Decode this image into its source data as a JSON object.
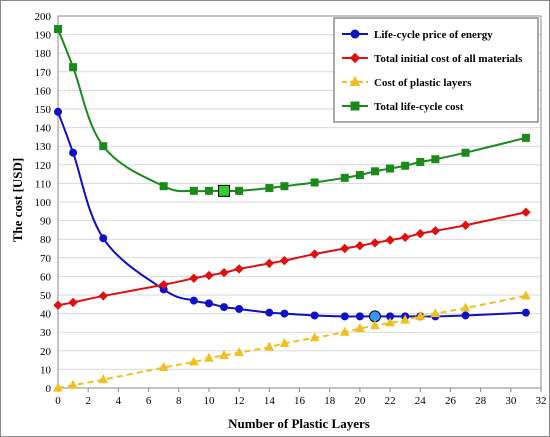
{
  "chart_data": {
    "type": "line",
    "title": "",
    "xlabel": "Number of Plastic Layers",
    "ylabel": "The cost [USD]",
    "xlim": [
      0,
      32
    ],
    "ylim": [
      0,
      200
    ],
    "x_ticks": [
      0,
      2,
      4,
      6,
      8,
      10,
      12,
      14,
      16,
      18,
      20,
      22,
      24,
      26,
      28,
      30,
      32
    ],
    "y_ticks": [
      0,
      10,
      20,
      30,
      40,
      50,
      60,
      70,
      80,
      90,
      100,
      110,
      120,
      130,
      140,
      150,
      160,
      170,
      180,
      190,
      200
    ],
    "grid": true,
    "legend_position": "top-right",
    "series": [
      {
        "name": "Life-cycle price of energy",
        "color": "#1010c8",
        "marker": "circle",
        "line": "solid",
        "x": [
          0,
          1,
          3,
          7,
          9,
          10,
          11,
          12,
          14,
          15,
          17,
          19,
          20,
          21,
          22,
          23,
          24,
          25,
          27,
          31
        ],
        "y": [
          148.5,
          126.5,
          80.5,
          53,
          47,
          45.5,
          43.5,
          42.5,
          40.5,
          40,
          39,
          38.5,
          38.5,
          38.5,
          38.5,
          38.5,
          38.5,
          38.5,
          39,
          40.5
        ],
        "highlight": {
          "x": 21,
          "y": 38.5,
          "color": "#3399ff"
        }
      },
      {
        "name": "Total initial cost of all materials",
        "color": "#e01010",
        "marker": "diamond",
        "line": "solid",
        "x": [
          0,
          1,
          3,
          7,
          9,
          10,
          11,
          12,
          14,
          15,
          17,
          19,
          20,
          21,
          22,
          23,
          24,
          25,
          27,
          31
        ],
        "y": [
          44.5,
          46,
          49.5,
          55.5,
          59,
          60.5,
          62,
          64,
          67,
          68.5,
          72,
          75,
          76.5,
          78,
          79.5,
          81,
          83,
          84.5,
          87.5,
          94.5
        ]
      },
      {
        "name": "Cost of plastic layers",
        "color": "#f0c020",
        "marker": "triangle",
        "line": "dashed",
        "x": [
          0,
          1,
          3,
          7,
          9,
          10,
          11,
          12,
          14,
          15,
          17,
          19,
          20,
          21,
          22,
          23,
          24,
          25,
          27,
          31
        ],
        "y": [
          0,
          1.5,
          4.5,
          11,
          14,
          16,
          17.5,
          19,
          22,
          24,
          27,
          30,
          32,
          33.5,
          35,
          36.5,
          38.5,
          40,
          43,
          49.5
        ]
      },
      {
        "name": "Total life-cycle cost",
        "color": "#1a8a1a",
        "marker": "square",
        "line": "solid",
        "x": [
          0,
          1,
          3,
          7,
          9,
          10,
          11,
          12,
          14,
          15,
          17,
          19,
          20,
          21,
          22,
          23,
          24,
          25,
          27,
          31
        ],
        "y": [
          193,
          172.5,
          130,
          108.5,
          106,
          106,
          106,
          106,
          107.5,
          108.5,
          110.5,
          113,
          114.5,
          116.5,
          118,
          119.5,
          121.5,
          123,
          126.5,
          134.5
        ],
        "highlight": {
          "x": 11,
          "y": 106,
          "color": "#33cc33"
        }
      }
    ]
  }
}
